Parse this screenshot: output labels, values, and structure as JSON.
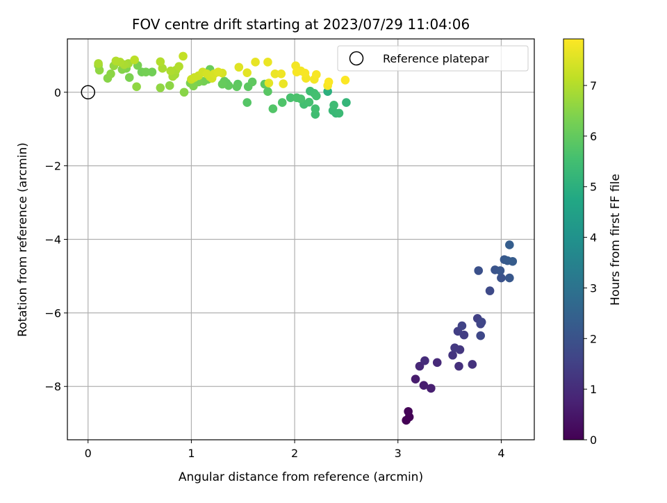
{
  "chart_data": {
    "type": "scatter",
    "title": "FOV centre drift starting at 2023/07/29 11:04:06",
    "xlabel": "Angular distance from reference (arcmin)",
    "ylabel": "Rotation from reference (arcmin)",
    "colorbar_label": "Hours from first FF file",
    "xlim": [
      -0.2,
      4.32
    ],
    "ylim": [
      -9.45,
      1.45
    ],
    "clim": [
      0,
      7.92
    ],
    "colormap": "viridis",
    "grid": true,
    "legend": {
      "location": "top-right",
      "entries": [
        {
          "label": "Reference platepar",
          "marker": "open-circle"
        }
      ]
    },
    "x_ticks": [
      0,
      1,
      2,
      3,
      4
    ],
    "x_tick_labels": [
      "0",
      "1",
      "2",
      "3",
      "4"
    ],
    "y_ticks": [
      0,
      -2,
      -4,
      -6,
      -8
    ],
    "y_tick_labels": [
      "0",
      "−2",
      "−4",
      "−6",
      "−8"
    ],
    "colorbar_ticks": [
      0,
      1,
      2,
      3,
      4,
      5,
      6,
      7
    ],
    "colorbar_tick_labels": [
      "0",
      "1",
      "2",
      "3",
      "4",
      "5",
      "6",
      "7"
    ],
    "reference_point": {
      "x": 0,
      "y": 0
    },
    "points": [
      {
        "x": 3.08,
        "y": -8.92,
        "h": 0.02
      },
      {
        "x": 3.11,
        "y": -8.83,
        "h": 0.05
      },
      {
        "x": 3.1,
        "y": -8.68,
        "h": 0.08
      },
      {
        "x": 3.17,
        "y": -7.8,
        "h": 0.6
      },
      {
        "x": 3.25,
        "y": -7.97,
        "h": 0.65
      },
      {
        "x": 3.32,
        "y": -8.05,
        "h": 0.7
      },
      {
        "x": 3.21,
        "y": -7.45,
        "h": 0.9
      },
      {
        "x": 3.26,
        "y": -7.3,
        "h": 1.0
      },
      {
        "x": 3.38,
        "y": -7.35,
        "h": 0.95
      },
      {
        "x": 3.53,
        "y": -7.15,
        "h": 1.2
      },
      {
        "x": 3.55,
        "y": -6.95,
        "h": 1.3
      },
      {
        "x": 3.6,
        "y": -7.0,
        "h": 1.25
      },
      {
        "x": 3.59,
        "y": -7.45,
        "h": 1.1
      },
      {
        "x": 3.72,
        "y": -7.4,
        "h": 1.15
      },
      {
        "x": 3.58,
        "y": -6.5,
        "h": 1.45
      },
      {
        "x": 3.62,
        "y": -6.35,
        "h": 1.55
      },
      {
        "x": 3.64,
        "y": -6.6,
        "h": 1.4
      },
      {
        "x": 3.77,
        "y": -6.15,
        "h": 1.5
      },
      {
        "x": 3.8,
        "y": -6.3,
        "h": 1.6
      },
      {
        "x": 3.81,
        "y": -6.25,
        "h": 1.65
      },
      {
        "x": 3.8,
        "y": -6.62,
        "h": 1.7
      },
      {
        "x": 3.89,
        "y": -5.4,
        "h": 1.75
      },
      {
        "x": 3.78,
        "y": -4.85,
        "h": 1.95
      },
      {
        "x": 3.94,
        "y": -4.83,
        "h": 2.05
      },
      {
        "x": 3.99,
        "y": -4.85,
        "h": 2.1
      },
      {
        "x": 4.0,
        "y": -5.05,
        "h": 2.0
      },
      {
        "x": 4.08,
        "y": -5.05,
        "h": 2.15
      },
      {
        "x": 4.03,
        "y": -4.55,
        "h": 2.2
      },
      {
        "x": 4.06,
        "y": -4.58,
        "h": 2.25
      },
      {
        "x": 4.11,
        "y": -4.6,
        "h": 2.3
      },
      {
        "x": 4.08,
        "y": -4.15,
        "h": 2.35
      },
      {
        "x": 2.32,
        "y": 0.02,
        "h": 5.0
      },
      {
        "x": 2.5,
        "y": -0.28,
        "h": 5.2
      },
      {
        "x": 2.37,
        "y": -0.5,
        "h": 5.3
      },
      {
        "x": 2.4,
        "y": -0.57,
        "h": 5.25
      },
      {
        "x": 2.43,
        "y": -0.57,
        "h": 5.35
      },
      {
        "x": 2.38,
        "y": -0.35,
        "h": 5.4
      },
      {
        "x": 2.2,
        "y": -0.6,
        "h": 5.45
      },
      {
        "x": 2.2,
        "y": -0.45,
        "h": 5.5
      },
      {
        "x": 2.14,
        "y": -0.27,
        "h": 5.55
      },
      {
        "x": 2.06,
        "y": -0.18,
        "h": 5.6
      },
      {
        "x": 2.09,
        "y": -0.33,
        "h": 5.5
      },
      {
        "x": 2.02,
        "y": -0.15,
        "h": 5.65
      },
      {
        "x": 1.96,
        "y": -0.15,
        "h": 5.6
      },
      {
        "x": 1.88,
        "y": -0.28,
        "h": 5.7
      },
      {
        "x": 1.79,
        "y": -0.45,
        "h": 5.75
      },
      {
        "x": 2.15,
        "y": 0.03,
        "h": 5.45
      },
      {
        "x": 2.19,
        "y": -0.03,
        "h": 5.5
      },
      {
        "x": 2.21,
        "y": -0.1,
        "h": 5.55
      },
      {
        "x": 1.54,
        "y": -0.28,
        "h": 5.8
      },
      {
        "x": 1.74,
        "y": 0.02,
        "h": 5.85
      },
      {
        "x": 1.71,
        "y": 0.22,
        "h": 5.9
      },
      {
        "x": 1.55,
        "y": 0.15,
        "h": 5.9
      },
      {
        "x": 1.59,
        "y": 0.28,
        "h": 5.95
      },
      {
        "x": 1.45,
        "y": 0.22,
        "h": 5.9
      },
      {
        "x": 1.44,
        "y": 0.15,
        "h": 5.95
      },
      {
        "x": 1.34,
        "y": 0.25,
        "h": 5.9
      },
      {
        "x": 1.36,
        "y": 0.18,
        "h": 6.0
      },
      {
        "x": 1.32,
        "y": 0.3,
        "h": 6.0
      },
      {
        "x": 1.3,
        "y": 0.22,
        "h": 6.05
      },
      {
        "x": 1.18,
        "y": 0.62,
        "h": 6.1
      },
      {
        "x": 0.52,
        "y": 0.55,
        "h": 6.2
      },
      {
        "x": 0.56,
        "y": 0.55,
        "h": 6.25
      },
      {
        "x": 0.62,
        "y": 0.55,
        "h": 6.2
      },
      {
        "x": 0.48,
        "y": 0.73,
        "h": 6.3
      },
      {
        "x": 0.4,
        "y": 0.4,
        "h": 6.35
      },
      {
        "x": 0.37,
        "y": 0.65,
        "h": 6.4
      },
      {
        "x": 0.33,
        "y": 0.62,
        "h": 6.45
      },
      {
        "x": 0.19,
        "y": 0.38,
        "h": 6.5
      },
      {
        "x": 0.22,
        "y": 0.5,
        "h": 6.55
      },
      {
        "x": 0.11,
        "y": 0.6,
        "h": 6.6
      },
      {
        "x": 0.1,
        "y": 0.73,
        "h": 6.6
      },
      {
        "x": 0.25,
        "y": 0.72,
        "h": 6.65
      },
      {
        "x": 0.47,
        "y": 0.15,
        "h": 6.6
      },
      {
        "x": 0.7,
        "y": 0.12,
        "h": 6.6
      },
      {
        "x": 0.79,
        "y": 0.18,
        "h": 6.55
      },
      {
        "x": 0.93,
        "y": 0.0,
        "h": 6.5
      },
      {
        "x": 1.02,
        "y": 0.17,
        "h": 6.4
      },
      {
        "x": 1.07,
        "y": 0.28,
        "h": 6.3
      },
      {
        "x": 0.99,
        "y": 0.25,
        "h": 6.35
      },
      {
        "x": 1.12,
        "y": 0.3,
        "h": 6.25
      },
      {
        "x": 1.16,
        "y": 0.35,
        "h": 6.2
      },
      {
        "x": 0.1,
        "y": 0.78,
        "h": 6.9
      },
      {
        "x": 0.27,
        "y": 0.85,
        "h": 7.0
      },
      {
        "x": 0.31,
        "y": 0.82,
        "h": 6.95
      },
      {
        "x": 0.35,
        "y": 0.75,
        "h": 6.9
      },
      {
        "x": 0.39,
        "y": 0.78,
        "h": 6.85
      },
      {
        "x": 0.45,
        "y": 0.88,
        "h": 7.1
      },
      {
        "x": 0.7,
        "y": 0.83,
        "h": 7.0
      },
      {
        "x": 0.72,
        "y": 0.65,
        "h": 6.9
      },
      {
        "x": 0.8,
        "y": 0.58,
        "h": 6.95
      },
      {
        "x": 0.85,
        "y": 0.6,
        "h": 6.9
      },
      {
        "x": 0.88,
        "y": 0.7,
        "h": 7.0
      },
      {
        "x": 0.92,
        "y": 0.98,
        "h": 7.2
      },
      {
        "x": 0.82,
        "y": 0.43,
        "h": 6.85
      },
      {
        "x": 0.84,
        "y": 0.48,
        "h": 6.8
      },
      {
        "x": 1.03,
        "y": 0.4,
        "h": 7.3
      },
      {
        "x": 1.07,
        "y": 0.45,
        "h": 7.3
      },
      {
        "x": 1.11,
        "y": 0.55,
        "h": 7.35
      },
      {
        "x": 1.15,
        "y": 0.5,
        "h": 7.4
      },
      {
        "x": 1.18,
        "y": 0.42,
        "h": 7.35
      },
      {
        "x": 1.22,
        "y": 0.5,
        "h": 7.45
      },
      {
        "x": 1.26,
        "y": 0.55,
        "h": 7.5
      },
      {
        "x": 1.3,
        "y": 0.52,
        "h": 7.45
      },
      {
        "x": 1.2,
        "y": 0.38,
        "h": 7.4
      },
      {
        "x": 1.46,
        "y": 0.68,
        "h": 7.55
      },
      {
        "x": 1.54,
        "y": 0.53,
        "h": 7.6
      },
      {
        "x": 1.62,
        "y": 0.82,
        "h": 7.65
      },
      {
        "x": 1.74,
        "y": 0.82,
        "h": 7.7
      },
      {
        "x": 1.75,
        "y": 0.25,
        "h": 7.6
      },
      {
        "x": 1.81,
        "y": 0.5,
        "h": 7.7
      },
      {
        "x": 1.87,
        "y": 0.5,
        "h": 7.75
      },
      {
        "x": 1.89,
        "y": 0.23,
        "h": 7.7
      },
      {
        "x": 2.01,
        "y": 0.72,
        "h": 7.8
      },
      {
        "x": 2.02,
        "y": 0.55,
        "h": 7.85
      },
      {
        "x": 2.06,
        "y": 0.58,
        "h": 7.8
      },
      {
        "x": 2.1,
        "y": 0.52,
        "h": 7.85
      },
      {
        "x": 2.11,
        "y": 0.38,
        "h": 7.8
      },
      {
        "x": 2.21,
        "y": 0.48,
        "h": 7.85
      },
      {
        "x": 2.19,
        "y": 0.35,
        "h": 7.8
      },
      {
        "x": 2.32,
        "y": 0.18,
        "h": 7.85
      },
      {
        "x": 2.33,
        "y": 0.28,
        "h": 7.9
      },
      {
        "x": 2.49,
        "y": 0.33,
        "h": 7.9
      },
      {
        "x": 1.0,
        "y": 0.35,
        "h": 7.25
      }
    ]
  }
}
